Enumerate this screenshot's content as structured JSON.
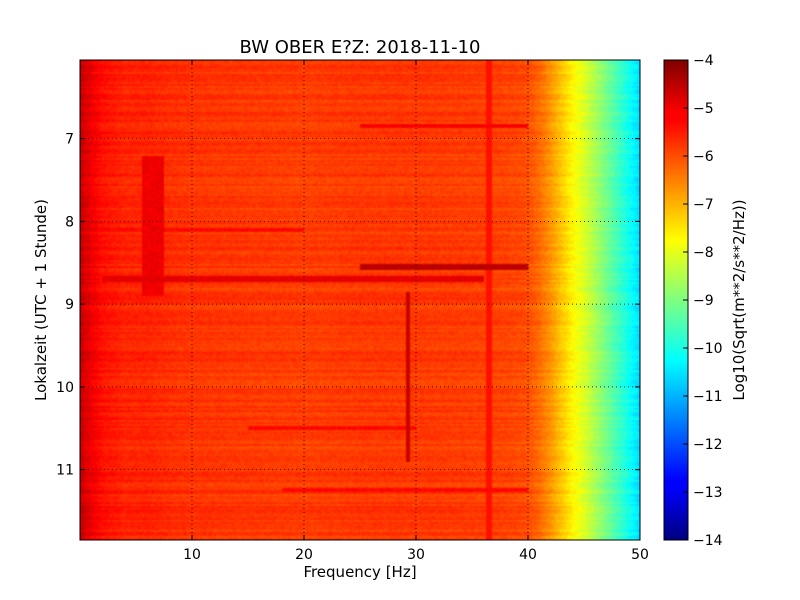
{
  "chart_data": {
    "type": "heatmap",
    "title": "BW OBER E?Z: 2018-11-10",
    "xlabel": "Frequency [Hz]",
    "ylabel": "Lokalzeit (UTC + 1 Stunde)",
    "xlim": [
      0,
      50
    ],
    "ylim": [
      11.85,
      6.05
    ],
    "y_inverted": true,
    "grid": true,
    "colormap": "jet",
    "x_ticks": [
      10,
      20,
      30,
      40,
      50
    ],
    "x_tick_labels": [
      "10",
      "20",
      "30",
      "40",
      "50"
    ],
    "y_ticks": [
      7,
      8,
      9,
      10,
      11
    ],
    "y_tick_labels": [
      "7",
      "8",
      "9",
      "10",
      "11"
    ],
    "colorbar": {
      "label": "Log10(Sqrt(m**2/s**2/Hz))",
      "range": [
        -14,
        -4
      ],
      "ticks": [
        -4,
        -5,
        -6,
        -7,
        -8,
        -9,
        -10,
        -11,
        -12,
        -13,
        -14
      ],
      "tick_labels": [
        "−4",
        "−5",
        "−6",
        "−7",
        "−8",
        "−9",
        "−10",
        "−11",
        "−12",
        "−13",
        "−14"
      ]
    },
    "spectral_profile": {
      "frequency_hz": [
        0,
        1,
        2,
        4,
        6,
        8,
        10,
        15,
        20,
        25,
        30,
        35,
        38,
        40,
        41,
        42,
        43,
        44,
        45,
        46,
        47,
        48,
        49,
        50
      ],
      "log_amplitude": [
        -4.7,
        -5.1,
        -5.4,
        -5.6,
        -5.6,
        -5.7,
        -5.75,
        -5.8,
        -5.85,
        -5.8,
        -5.8,
        -5.85,
        -5.9,
        -6.0,
        -6.3,
        -6.7,
        -7.2,
        -7.7,
        -8.1,
        -8.6,
        -9.1,
        -9.6,
        -10.1,
        -10.6
      ]
    },
    "features": [
      {
        "kind": "band",
        "freq_range": [
          5.5,
          7.5
        ],
        "time_range": [
          7.2,
          8.9
        ],
        "log_amplitude": -5.1
      },
      {
        "kind": "line",
        "freq_hz": 29.3,
        "time_range": [
          8.85,
          10.9
        ],
        "log_amplitude": -4.7
      },
      {
        "kind": "line",
        "freq_hz": 36.5,
        "time_range": [
          6.05,
          11.85
        ],
        "log_amplitude": -5.4
      },
      {
        "kind": "burst",
        "time": 8.55,
        "freq_range": [
          25,
          40
        ],
        "log_amplitude": -4.6
      },
      {
        "kind": "burst",
        "time": 8.7,
        "freq_range": [
          2,
          36
        ],
        "log_amplitude": -5.0
      },
      {
        "kind": "burst",
        "time": 6.85,
        "freq_range": [
          25,
          40
        ],
        "log_amplitude": -5.2
      },
      {
        "kind": "burst",
        "time": 10.5,
        "freq_range": [
          15,
          30
        ],
        "log_amplitude": -5.3
      },
      {
        "kind": "burst",
        "time": 8.1,
        "freq_range": [
          0,
          20
        ],
        "log_amplitude": -5.3
      },
      {
        "kind": "burst",
        "time": 11.25,
        "freq_range": [
          18,
          40
        ],
        "log_amplitude": -5.3
      }
    ]
  }
}
